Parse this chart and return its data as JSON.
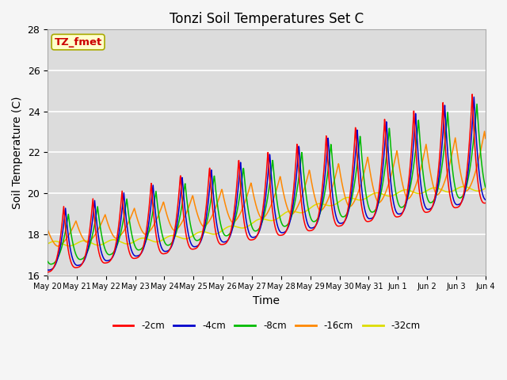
{
  "title": "Tonzi Soil Temperatures Set C",
  "xlabel": "Time",
  "ylabel": "Soil Temperature (C)",
  "ylim": [
    16,
    28
  ],
  "xlim": [
    0,
    15
  ],
  "xtick_labels": [
    "May 20",
    "May 21",
    "May 22",
    "May 23",
    "May 24",
    "May 25",
    "May 26",
    "May 27",
    "May 28",
    "May 29",
    "May 30",
    "May 31",
    "Jun 1",
    "Jun 2",
    "Jun 3",
    "Jun 4"
  ],
  "series_colors": [
    "#ff0000",
    "#0000cc",
    "#00bb00",
    "#ff8800",
    "#dddd00"
  ],
  "series_labels": [
    "-2cm",
    "-4cm",
    "-8cm",
    "-16cm",
    "-32cm"
  ],
  "annotation_text": "TZ_fmet",
  "annotation_bg": "#ffffcc",
  "annotation_border": "#aaaa00",
  "annotation_text_color": "#cc0000",
  "plot_bg": "#dcdcdc",
  "fig_bg": "#f5f5f5",
  "grid_color": "#ffffff",
  "title_fontsize": 12,
  "axis_fontsize": 9,
  "label_fontsize": 10
}
